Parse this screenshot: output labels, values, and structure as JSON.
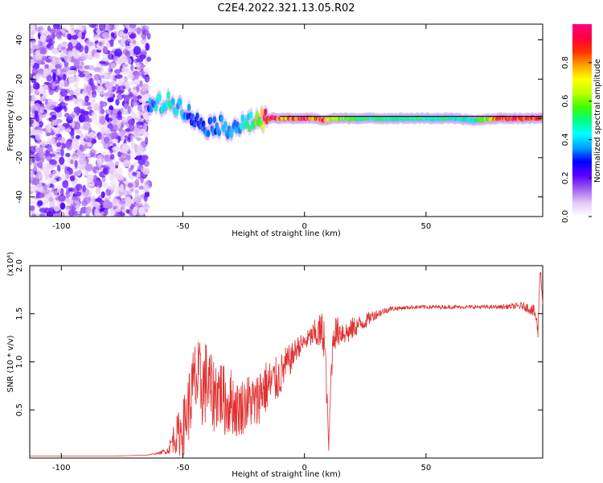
{
  "title": "C2E4.2022.321.13.05.R02",
  "chart_data": [
    {
      "type": "heatmap",
      "xlabel": "Height of straight line (km)",
      "ylabel": "Frequency (Hz)",
      "xlim": [
        -113,
        98
      ],
      "ylim": [
        -50,
        48
      ],
      "x_ticks": [
        -100,
        -50,
        0,
        50
      ],
      "x_tick_labels": [
        "-100",
        "-50",
        "0",
        "50"
      ],
      "y_ticks": [
        -40,
        -20,
        0,
        20,
        40
      ],
      "y_tick_labels": [
        "-40",
        "-20",
        "0",
        "20",
        "40"
      ],
      "colorbar": {
        "label": "Normalized spectral amplitude",
        "range": [
          0,
          1
        ],
        "ticks": [
          0.0,
          0.2,
          0.4,
          0.6,
          0.8
        ],
        "tick_labels": [
          "0.0",
          "0.2",
          "0.4",
          "0.6",
          "0.8"
        ],
        "colormap": [
          "#ffffff",
          "#e6c8f5",
          "#a060f0",
          "#5a00ff",
          "#0000ff",
          "#00a0ff",
          "#00ffff",
          "#00ff80",
          "#40ff00",
          "#c0ff00",
          "#ffff00",
          "#ffa000",
          "#ff3000",
          "#ff0040",
          "#ff0080"
        ]
      },
      "grid": false,
      "noise_region_x": [
        -113,
        -64
      ],
      "ridge": {
        "x": [
          -64,
          -60,
          -56,
          -52,
          -48,
          -44,
          -40,
          -36,
          -32,
          -28,
          -24,
          -20,
          -16,
          -12,
          -8,
          -4,
          0,
          4,
          8,
          12,
          16,
          20,
          30,
          40,
          50,
          60,
          70,
          80,
          90,
          98
        ],
        "frequency": [
          6,
          7,
          8,
          7,
          3,
          -2,
          -4,
          -3,
          -5,
          -4,
          -3,
          -1,
          0,
          0,
          0,
          0,
          0,
          0,
          -1,
          0,
          0,
          0,
          0,
          0,
          0,
          0,
          -1,
          0,
          0,
          0
        ],
        "amplitude": [
          0.35,
          0.45,
          0.5,
          0.4,
          0.35,
          0.3,
          0.35,
          0.35,
          0.38,
          0.4,
          0.45,
          0.55,
          0.9,
          0.95,
          0.8,
          0.9,
          0.95,
          0.8,
          0.9,
          0.7,
          0.6,
          0.55,
          0.5,
          0.5,
          0.5,
          0.5,
          0.45,
          0.9,
          0.95,
          0.9
        ]
      }
    },
    {
      "type": "line",
      "xlabel": "Height of straight line (km)",
      "ylabel": "SNR (10 * v/v)",
      "y_scale_label": "(x10⁴)",
      "xlim": [
        -113,
        98
      ],
      "ylim": [
        0,
        2.0
      ],
      "x_ticks": [
        -100,
        -50,
        0,
        50
      ],
      "x_tick_labels": [
        "-100",
        "-50",
        "0",
        "50"
      ],
      "y_ticks": [
        0.5,
        1.0,
        1.5,
        2.0
      ],
      "y_tick_labels": [
        "0.5",
        "1.0",
        "1.5",
        "2.0"
      ],
      "grid": false,
      "line_color": "#e03030",
      "series": [
        {
          "x": [
            -113,
            -100,
            -80,
            -65,
            -60,
            -56,
            -54,
            -50,
            -47,
            -45,
            -42,
            -40,
            -38,
            -35,
            -32,
            -30,
            -28,
            -25,
            -22,
            -20,
            -18,
            -15,
            -12,
            -10,
            -8,
            -5,
            -3,
            0,
            2,
            4,
            6,
            8,
            9,
            10,
            11,
            12,
            15,
            18,
            20,
            22,
            25,
            28,
            30,
            35,
            40,
            45,
            50,
            60,
            70,
            80,
            90,
            93,
            95,
            96,
            97,
            98
          ],
          "y": [
            0.02,
            0.02,
            0.02,
            0.03,
            0.05,
            0.08,
            0.2,
            0.3,
            0.6,
            0.8,
            0.75,
            0.8,
            0.65,
            0.7,
            0.55,
            0.6,
            0.5,
            0.55,
            0.6,
            0.55,
            0.7,
            0.75,
            0.8,
            0.85,
            0.95,
            1.05,
            1.15,
            1.2,
            1.25,
            1.28,
            1.3,
            1.3,
            0.8,
            0.1,
            0.9,
            1.3,
            1.32,
            1.3,
            1.35,
            1.38,
            1.42,
            1.48,
            1.5,
            1.55,
            1.56,
            1.57,
            1.57,
            1.57,
            1.57,
            1.57,
            1.58,
            1.55,
            1.5,
            1.3,
            2.0,
            1.6
          ],
          "noise": [
            0,
            0,
            0,
            0,
            0.01,
            0.04,
            0.15,
            0.3,
            0.4,
            0.45,
            0.45,
            0.45,
            0.4,
            0.4,
            0.35,
            0.35,
            0.3,
            0.3,
            0.3,
            0.3,
            0.3,
            0.28,
            0.25,
            0.22,
            0.2,
            0.15,
            0.12,
            0.1,
            0.1,
            0.15,
            0.2,
            0.25,
            0.2,
            0.05,
            0.2,
            0.18,
            0.15,
            0.12,
            0.12,
            0.1,
            0.08,
            0.06,
            0.05,
            0.03,
            0.02,
            0.02,
            0.02,
            0.02,
            0.02,
            0.02,
            0.04,
            0.06,
            0.08,
            0.1,
            0.05,
            0.04
          ]
        }
      ]
    }
  ]
}
